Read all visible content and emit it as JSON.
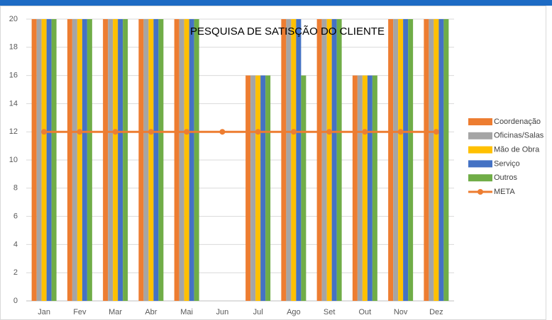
{
  "chart_data": {
    "type": "bar",
    "title": "PESQUISA DE SATISÇÃO DO CLIENTE",
    "categories": [
      "Jan",
      "Fev",
      "Mar",
      "Abr",
      "Mai",
      "Jun",
      "Jul",
      "Ago",
      "Set",
      "Out",
      "Nov",
      "Dez"
    ],
    "series": [
      {
        "name": "Coordenação",
        "color": "#ed7d31",
        "values": [
          20,
          20,
          20,
          20,
          20,
          0,
          16,
          20,
          20,
          16,
          20,
          20
        ]
      },
      {
        "name": "Oficinas/Salas",
        "color": "#a5a5a5",
        "values": [
          20,
          20,
          20,
          20,
          20,
          0,
          16,
          20,
          20,
          16,
          20,
          20
        ]
      },
      {
        "name": "Mão de Obra",
        "color": "#ffc000",
        "values": [
          20,
          20,
          20,
          20,
          20,
          0,
          16,
          20,
          20,
          16,
          20,
          20
        ]
      },
      {
        "name": "Serviço",
        "color": "#4472c4",
        "values": [
          20,
          20,
          20,
          20,
          20,
          0,
          16,
          20,
          20,
          16,
          20,
          20
        ]
      },
      {
        "name": "Outros",
        "color": "#70ad47",
        "values": [
          20,
          20,
          20,
          20,
          20,
          0,
          16,
          16,
          20,
          16,
          20,
          20
        ]
      },
      {
        "name": "META",
        "color": "#ed7d31",
        "type": "line",
        "values": [
          12,
          12,
          12,
          12,
          12,
          12,
          12,
          12,
          12,
          12,
          12,
          12
        ]
      }
    ],
    "ylim": [
      0,
      20
    ],
    "yticks": [
      0,
      2,
      4,
      6,
      8,
      10,
      12,
      14,
      16,
      18,
      20
    ],
    "grid": true,
    "legend": "right"
  }
}
